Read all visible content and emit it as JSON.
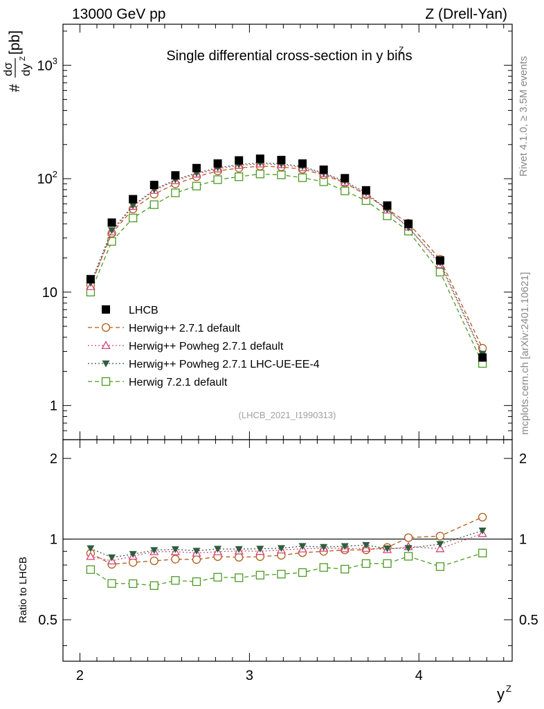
{
  "header": {
    "left": "13000 GeV pp",
    "right": "Z (Drell-Yan)",
    "title": "Single differential cross-section in y bins",
    "title_accent": "Z"
  },
  "side_labels": {
    "rivet": "Rivet 4.1.0, ≥ 3.5M events",
    "mcplots": "mcplots.cern.ch [arXiv:2401.10621]"
  },
  "watermark": "(LHCB_2021_I1990313)",
  "chart_data": {
    "type": "scatter",
    "title": "Single differential cross-section in y bins",
    "xlabel": "y^Z",
    "ylabel": "# dσ/dy^Z [pb]",
    "ylabel_parts": {
      "hash": "#",
      "num": "dσ",
      "den": "dy",
      "den_sup": "Z",
      "unit": "[pb]"
    },
    "xlabel_parts": {
      "base": "y",
      "sup": "Z"
    },
    "xlim": [
      1.9,
      4.55
    ],
    "ylim": [
      0.5,
      2300
    ],
    "yscale": "log",
    "x": [
      2.063,
      2.188,
      2.313,
      2.438,
      2.563,
      2.688,
      2.813,
      2.938,
      3.063,
      3.188,
      3.313,
      3.438,
      3.563,
      3.688,
      3.813,
      3.938,
      4.125,
      4.375
    ],
    "x_ticks": [
      "2",
      "3",
      "4"
    ],
    "x_tick_values": [
      2,
      3,
      4
    ],
    "y_ticks": [
      "1",
      "10",
      "10^2",
      "10^3"
    ],
    "y_tick_values": [
      1,
      10,
      100,
      1000
    ],
    "series": [
      {
        "name": "LHCB",
        "style": "data",
        "color": "#000000",
        "marker": "square-filled",
        "line": "none",
        "values": [
          13.0,
          41.0,
          66.0,
          88.0,
          107.0,
          124.0,
          136.0,
          145.0,
          150.0,
          146.0,
          136.0,
          120.0,
          101.0,
          79.0,
          58.0,
          40.0,
          19.0,
          2.65
        ]
      },
      {
        "name": "Herwig++ 2.7.1 default",
        "style": "mc",
        "color": "#b05a16",
        "marker": "circle-open",
        "line": "dashed",
        "values": [
          11.5,
          33.0,
          54.0,
          73.0,
          90.0,
          104.0,
          117.0,
          124.0,
          129.0,
          127.0,
          121.0,
          108.0,
          92.0,
          72.0,
          54.0,
          40.5,
          19.5,
          3.2
        ]
      },
      {
        "name": "Herwig++ Powheg 2.7.1 default",
        "style": "mc",
        "color": "#d6457a",
        "marker": "triangle-open",
        "line": "dotted",
        "values": [
          11.2,
          34.0,
          57.0,
          79.0,
          96.0,
          110.0,
          122.0,
          131.0,
          135.0,
          133.0,
          125.0,
          111.0,
          93.0,
          73.0,
          53.0,
          37.5,
          17.5,
          2.78
        ]
      },
      {
        "name": "Herwig++ Powheg 2.7.1 LHC-UE-EE-4",
        "style": "mc",
        "color": "#2e5e3e",
        "marker": "triangle-down-filled",
        "line": "dotted",
        "values": [
          12.0,
          35.0,
          58.0,
          80.0,
          98.0,
          112.0,
          125.0,
          133.0,
          138.0,
          135.0,
          128.0,
          112.0,
          95.0,
          75.0,
          53.5,
          37.0,
          18.2,
          2.85
        ]
      },
      {
        "name": "Herwig 7.2.1 default",
        "style": "mc",
        "color": "#4a9a1f",
        "marker": "square-open",
        "line": "dashed",
        "values": [
          10.0,
          28.0,
          45.0,
          59.0,
          75.0,
          86.0,
          98.0,
          104.0,
          110.0,
          108.0,
          102.0,
          94.0,
          78.0,
          64.0,
          47.0,
          34.5,
          15.0,
          2.35
        ]
      }
    ],
    "ratio": {
      "ylabel": "Ratio to LHCB",
      "ylim": [
        0.35,
        2.35
      ],
      "yscale": "log",
      "y_ticks": [
        "0.5",
        "1",
        "2"
      ],
      "y_tick_values": [
        0.5,
        1,
        2
      ],
      "reference": 1
    }
  }
}
